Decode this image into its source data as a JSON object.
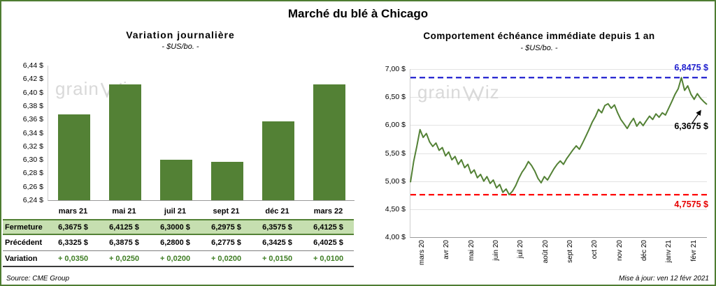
{
  "page": {
    "title": "Marché du blé à Chicago",
    "source": "Source: CME Group",
    "updated": "Mise à jour: ven 12 févr 2021"
  },
  "watermark": {
    "pre": "grain",
    "post": "iz"
  },
  "colors": {
    "bar": "#538135",
    "line": "#538135",
    "variation_text": "#3e7d23",
    "blue": "#2020cf",
    "red": "#ff0000",
    "red_label": "#e60000"
  },
  "chart_data": [
    {
      "type": "bar",
      "title": "Variation journalière",
      "subtitle": "- $US/bo. -",
      "categories": [
        "mars 21",
        "mai 21",
        "juil 21",
        "sept 21",
        "déc 21",
        "mars 22"
      ],
      "values": [
        6.3675,
        6.4125,
        6.3,
        6.2975,
        6.3575,
        6.4125
      ],
      "ylim": [
        6.24,
        6.44
      ],
      "ytick_step": 0.02,
      "grid": false,
      "table": {
        "rows": [
          {
            "label": "Fermeture",
            "style": "fermeture",
            "values": [
              "6,3675 $",
              "6,4125 $",
              "6,3000 $",
              "6,2975 $",
              "6,3575 $",
              "6,4125 $"
            ]
          },
          {
            "label": "Précédent",
            "style": "precedent",
            "values": [
              "6,3325 $",
              "6,3875 $",
              "6,2800 $",
              "6,2775 $",
              "6,3425 $",
              "6,4025 $"
            ]
          },
          {
            "label": "Variation",
            "style": "variation",
            "values": [
              "+ 0,0350",
              "+ 0,0250",
              "+ 0,0200",
              "+ 0,0200",
              "+ 0,0150",
              "+ 0,0100"
            ]
          }
        ]
      }
    },
    {
      "type": "line",
      "title": "Comportement échéance immédiate depuis 1 an",
      "subtitle": "- $US/bo. -",
      "x_labels": [
        "mars 20",
        "avr 20",
        "mai 20",
        "juin 20",
        "juil 20",
        "août 20",
        "sept 20",
        "oct 20",
        "nov 20",
        "déc 20",
        "janv 21",
        "févr 21"
      ],
      "values": [
        4.98,
        5.35,
        5.62,
        5.92,
        5.78,
        5.85,
        5.7,
        5.62,
        5.68,
        5.55,
        5.6,
        5.45,
        5.52,
        5.38,
        5.44,
        5.3,
        5.38,
        5.24,
        5.3,
        5.14,
        5.2,
        5.06,
        5.12,
        5.0,
        5.08,
        4.96,
        5.02,
        4.88,
        4.94,
        4.8,
        4.86,
        4.7575,
        4.82,
        4.92,
        5.05,
        5.16,
        5.24,
        5.35,
        5.28,
        5.18,
        5.05,
        4.97,
        5.08,
        5.02,
        5.12,
        5.22,
        5.3,
        5.36,
        5.3,
        5.4,
        5.48,
        5.56,
        5.63,
        5.57,
        5.68,
        5.8,
        5.92,
        6.05,
        6.15,
        6.28,
        6.22,
        6.35,
        6.38,
        6.3,
        6.36,
        6.22,
        6.1,
        6.02,
        5.94,
        6.04,
        6.12,
        5.98,
        6.06,
        5.99,
        6.08,
        6.16,
        6.1,
        6.2,
        6.14,
        6.22,
        6.18,
        6.3,
        6.42,
        6.55,
        6.65,
        6.8475,
        6.62,
        6.7,
        6.55,
        6.46,
        6.56,
        6.48,
        6.42,
        6.3675
      ],
      "ylim": [
        4.0,
        7.0
      ],
      "ytick_step": 0.5,
      "grid": true,
      "legend": "none",
      "annotations": {
        "max_line": {
          "value": 6.8475,
          "label": "6,8475 $"
        },
        "min_line": {
          "value": 4.7575,
          "label": "4,7575 $"
        },
        "last": {
          "value": 6.3675,
          "label": "6,3675 $"
        }
      }
    }
  ]
}
